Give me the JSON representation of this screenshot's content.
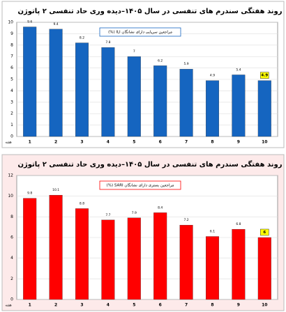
{
  "chart_data": [
    {
      "type": "bar",
      "title": "روند هفتگی سندرم های تنفسی در سال ۱۴۰۵–دیده وری حاد تنفسی ۲ پاتوژن",
      "x_label": "هفته",
      "categories": [
        "1",
        "2",
        "3",
        "4",
        "5",
        "6",
        "7",
        "8",
        "9",
        "10"
      ],
      "series": [
        {
          "name": "مراجعین سرپایی دارای نشانگان ILI (%)",
          "color": "#1565c0",
          "values": [
            9.6,
            9.4,
            8.2,
            7.8,
            7,
            6.2,
            5.9,
            4.9,
            5.4,
            4.9
          ]
        }
      ],
      "ylim": [
        0,
        10
      ],
      "yticks": [
        0,
        1,
        2,
        3,
        4,
        5,
        6,
        7,
        8,
        9,
        10
      ],
      "grid": true,
      "background": "#ffffff",
      "highlight_color": "#ffff00"
    },
    {
      "type": "bar",
      "title": "روند هفتگی سندرم های تنفسی در سال ۱۴۰۵–دیده وری حاد تنفسی ۲ پاتوژن",
      "x_label": "هفته",
      "categories": [
        "1",
        "2",
        "3",
        "4",
        "5",
        "6",
        "7",
        "8",
        "9",
        "10"
      ],
      "series": [
        {
          "name": "مراجعین بستری دارای نشانگان SARI (%)",
          "color": "#ff0000",
          "values": [
            9.8,
            10.1,
            8.8,
            7.7,
            7.9,
            8.4,
            7.2,
            6.1,
            6.8,
            6
          ]
        }
      ],
      "ylim": [
        0,
        12
      ],
      "yticks": [
        0,
        2,
        4,
        6,
        8,
        10,
        12
      ],
      "grid": true,
      "background": "#fdeaea",
      "highlight_color": "#ffff00"
    }
  ]
}
